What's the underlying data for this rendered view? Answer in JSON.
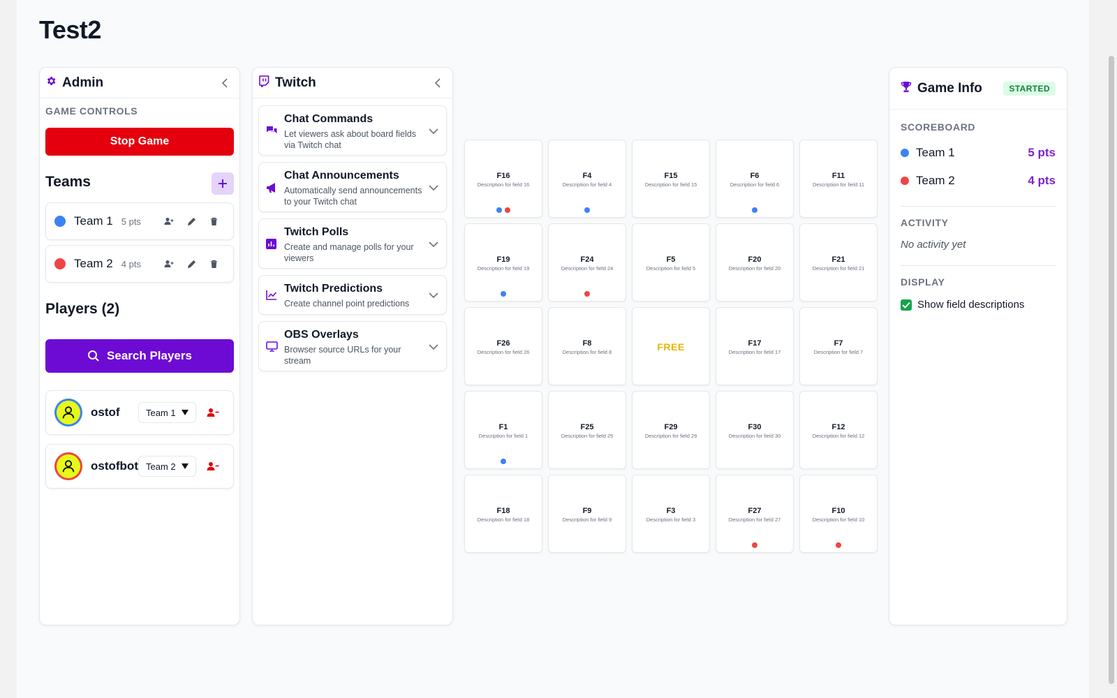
{
  "page": {
    "title": "Test2"
  },
  "admin": {
    "title": "Admin",
    "game_controls_label": "GAME CONTROLS",
    "stop_game_label": "Stop Game",
    "teams_heading": "Teams",
    "teams": [
      {
        "name": "Team 1",
        "points": "5 pts",
        "color": "#3b82f6"
      },
      {
        "name": "Team 2",
        "points": "4 pts",
        "color": "#ef4444"
      }
    ],
    "players_heading": "Players (2)",
    "search_players_label": "Search Players",
    "players": [
      {
        "name": "ostof",
        "team": "Team 1",
        "ring": "#3b82f6"
      },
      {
        "name": "ostofbot",
        "team": "Team 2",
        "ring": "#ef4444"
      }
    ]
  },
  "twitch": {
    "title": "Twitch",
    "sections": [
      {
        "title": "Chat Commands",
        "desc": "Let viewers ask about board fields via Twitch chat",
        "icon": "chat-bubbles-icon"
      },
      {
        "title": "Chat Announcements",
        "desc": "Automatically send announcements to your Twitch chat",
        "icon": "megaphone-icon"
      },
      {
        "title": "Twitch Polls",
        "desc": "Create and manage polls for your viewers",
        "icon": "poll-icon"
      },
      {
        "title": "Twitch Predictions",
        "desc": "Create channel point predictions",
        "icon": "chart-line-icon"
      },
      {
        "title": "OBS Overlays",
        "desc": "Browser source URLs for your stream",
        "icon": "monitor-icon"
      }
    ]
  },
  "board": {
    "cells": [
      {
        "label": "F16",
        "desc": "Description for field 16",
        "marks": [
          "#3b82f6",
          "#ef4444"
        ]
      },
      {
        "label": "F4",
        "desc": "Description for field 4",
        "marks": [
          "#3b82f6"
        ]
      },
      {
        "label": "F15",
        "desc": "Description for field 15",
        "marks": []
      },
      {
        "label": "F6",
        "desc": "Description for field 6",
        "marks": [
          "#3b82f6"
        ]
      },
      {
        "label": "F11",
        "desc": "Description for field 11",
        "marks": []
      },
      {
        "label": "F19",
        "desc": "Description for field 19",
        "marks": [
          "#3b82f6"
        ]
      },
      {
        "label": "F24",
        "desc": "Description for field 24",
        "marks": [
          "#ef4444"
        ]
      },
      {
        "label": "F5",
        "desc": "Description for field 5",
        "marks": []
      },
      {
        "label": "F20",
        "desc": "Description for field 20",
        "marks": []
      },
      {
        "label": "F21",
        "desc": "Description for field 21",
        "marks": []
      },
      {
        "label": "F26",
        "desc": "Description for field 26",
        "marks": []
      },
      {
        "label": "F8",
        "desc": "Description for field 8",
        "marks": []
      },
      {
        "label": "FREE",
        "desc": "",
        "marks": [],
        "free": true
      },
      {
        "label": "F17",
        "desc": "Description for field 17",
        "marks": []
      },
      {
        "label": "F7",
        "desc": "Description for field 7",
        "marks": []
      },
      {
        "label": "F1",
        "desc": "Description for field 1",
        "marks": [
          "#3b82f6"
        ]
      },
      {
        "label": "F25",
        "desc": "Description for field 25",
        "marks": []
      },
      {
        "label": "F29",
        "desc": "Description for field 29",
        "marks": []
      },
      {
        "label": "F30",
        "desc": "Description for field 30",
        "marks": []
      },
      {
        "label": "F12",
        "desc": "Description for field 12",
        "marks": []
      },
      {
        "label": "F18",
        "desc": "Description for field 18",
        "marks": []
      },
      {
        "label": "F9",
        "desc": "Description for field 9",
        "marks": []
      },
      {
        "label": "F3",
        "desc": "Description for field 3",
        "marks": []
      },
      {
        "label": "F27",
        "desc": "Description for field 27",
        "marks": [
          "#ef4444"
        ]
      },
      {
        "label": "F10",
        "desc": "Description for field 10",
        "marks": [
          "#ef4444"
        ]
      }
    ]
  },
  "game_info": {
    "title": "Game Info",
    "status": "STARTED",
    "scoreboard_label": "SCOREBOARD",
    "scores": [
      {
        "name": "Team 1",
        "points": "5 pts",
        "color": "#3b82f6"
      },
      {
        "name": "Team 2",
        "points": "4 pts",
        "color": "#ef4444"
      }
    ],
    "activity_label": "ACTIVITY",
    "activity_empty": "No activity yet",
    "display_label": "DISPLAY",
    "show_descriptions_label": "Show field descriptions",
    "show_descriptions_checked": true
  },
  "colors": {
    "accent": "#6d0bd4",
    "danger": "#e5000e",
    "points": "#7e22ce",
    "free": "#eab308"
  }
}
